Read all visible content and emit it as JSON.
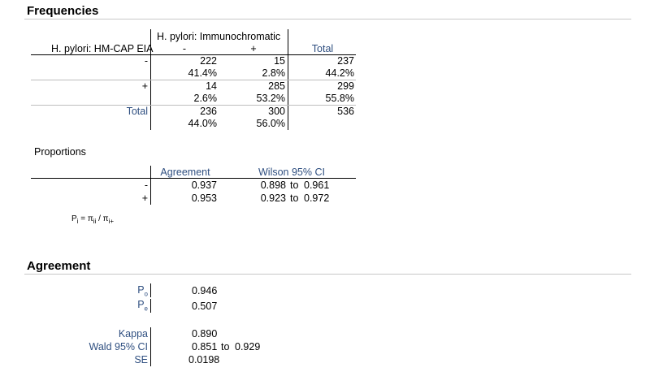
{
  "frequencies": {
    "title": "Frequencies",
    "col_var": "H. pylori: Immunochromatic",
    "row_var": "H. pylori: HM-CAP EIA",
    "col_minus": "-",
    "col_plus": "+",
    "col_total": "Total",
    "rows": [
      {
        "label": "-",
        "c1": "222",
        "c1p": "41.4%",
        "c2": "15",
        "c2p": "2.8%",
        "t": "237",
        "tp": "44.2%"
      },
      {
        "label": "+",
        "c1": "14",
        "c1p": "2.6%",
        "c2": "285",
        "c2p": "53.2%",
        "t": "299",
        "tp": "55.8%"
      }
    ],
    "total": {
      "label": "Total",
      "c1": "236",
      "c1p": "44.0%",
      "c2": "300",
      "c2p": "56.0%",
      "t": "536"
    }
  },
  "proportions": {
    "title": "Proportions",
    "h_agree": "Agreement",
    "h_ci": "Wilson 95% CI",
    "rows": [
      {
        "label": "-",
        "agree": "0.937",
        "lo": "0.898",
        "to": "to",
        "hi": "0.961"
      },
      {
        "label": "+",
        "agree": "0.953",
        "lo": "0.923",
        "to": "to",
        "hi": "0.972"
      }
    ],
    "formula": {
      "p": "P",
      "i": "i",
      "eq": "= π",
      "ii": "ii",
      "slash": "/ π",
      "iplus": "i+"
    }
  },
  "agreement": {
    "title": "Agreement",
    "po_label": "P",
    "po_sub": "o",
    "po_value": "0.946",
    "pe_label": "P",
    "pe_sub": "e",
    "pe_value": "0.507",
    "kappa_label": "Kappa",
    "kappa_value": "0.890",
    "wald_label": "Wald 95% CI",
    "wald_lo": "0.851",
    "wald_to": "to",
    "wald_hi": "0.929",
    "se_label": "SE",
    "se_value": "0.0198"
  }
}
